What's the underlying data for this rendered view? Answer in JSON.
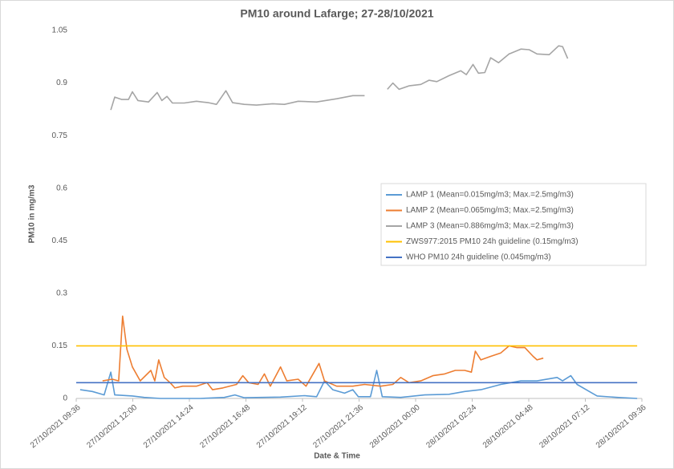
{
  "chart_data": {
    "type": "line",
    "title": "PM10 around Lafarge; 27-28/10/2021",
    "x_label": "Date & Time",
    "y_label": "PM10 in mg/m3",
    "xlim": [
      "27/10/2021 09:36",
      "28/10/2021 09:36"
    ],
    "xticks": [
      "27/10/2021 09:36",
      "27/10/2021 12:00",
      "27/10/2021 14:24",
      "27/10/2021 16:48",
      "27/10/2021 19:12",
      "27/10/2021 21:36",
      "28/10/2021 00:00",
      "28/10/2021 02:24",
      "28/10/2021 04:48",
      "28/10/2021 07:12",
      "28/10/2021 09:36"
    ],
    "ylim": [
      0,
      1.05
    ],
    "yticks": [
      0,
      0.15,
      0.3,
      0.45,
      0.6,
      0.75,
      0.9,
      1.05
    ],
    "grid": false,
    "legend": "right",
    "series": [
      {
        "name": "LAMP 1 (Mean=0.015mg/m3; Max.=2.5mg/m3)",
        "color": "#5b9bd5",
        "x": [
          "27/10/2021 09:46",
          "27/10/2021 10:17",
          "27/10/2021 10:47",
          "27/10/2021 11:04",
          "27/10/2021 11:14",
          "27/10/2021 11:59",
          "27/10/2021 12:29",
          "27/10/2021 13:10",
          "27/10/2021 14:52",
          "27/10/2021 15:53",
          "27/10/2021 16:20",
          "27/10/2021 16:44",
          "27/10/2021 18:16",
          "27/10/2021 19:17",
          "27/10/2021 19:48",
          "27/10/2021 20:08",
          "27/10/2021 20:29",
          "27/10/2021 20:59",
          "27/10/2021 21:20",
          "27/10/2021 21:34",
          "27/10/2021 22:05",
          "27/10/2021 22:21",
          "27/10/2021 22:35",
          "27/10/2021 23:22",
          "28/10/2021 00:23",
          "28/10/2021 01:25",
          "28/10/2021 02:05",
          "28/10/2021 02:46",
          "28/10/2021 03:37",
          "28/10/2021 04:28",
          "28/10/2021 05:09",
          "28/10/2021 06:00",
          "28/10/2021 06:14",
          "28/10/2021 06:35",
          "28/10/2021 06:51",
          "28/10/2021 07:22",
          "28/10/2021 07:42",
          "28/10/2021 08:33",
          "28/10/2021 09:24"
        ],
        "values": [
          0.025,
          0.02,
          0.01,
          0.075,
          0.01,
          0.007,
          0.003,
          0,
          0,
          0.003,
          0.01,
          0.002,
          0.004,
          0.008,
          0.005,
          0.05,
          0.025,
          0.015,
          0.025,
          0.005,
          0.005,
          0.08,
          0.005,
          0.003,
          0.01,
          0.012,
          0.02,
          0.025,
          0.04,
          0.05,
          0.05,
          0.06,
          0.05,
          0.065,
          0.04,
          0.02,
          0.007,
          0.003,
          0
        ]
      },
      {
        "name": "LAMP 2 (Mean=0.065mg/m3; Max.=2.5mg/m3)",
        "color": "#ed7d31",
        "x": [
          "27/10/2021 10:43",
          "27/10/2021 11:08",
          "27/10/2021 11:24",
          "27/10/2021 11:34",
          "27/10/2021 11:45",
          "27/10/2021 11:59",
          "27/10/2021 12:19",
          "27/10/2021 12:46",
          "27/10/2021 12:56",
          "27/10/2021 13:06",
          "27/10/2021 13:20",
          "27/10/2021 13:35",
          "27/10/2021 13:47",
          "27/10/2021 14:07",
          "27/10/2021 14:42",
          "27/10/2021 15:09",
          "27/10/2021 15:23",
          "27/10/2021 15:49",
          "27/10/2021 16:24",
          "27/10/2021 16:40",
          "27/10/2021 16:55",
          "27/10/2021 17:19",
          "27/10/2021 17:35",
          "27/10/2021 17:50",
          "27/10/2021 18:16",
          "27/10/2021 18:32",
          "27/10/2021 19:01",
          "27/10/2021 19:21",
          "27/10/2021 19:54",
          "27/10/2021 20:08",
          "27/10/2021 20:39",
          "27/10/2021 21:20",
          "27/10/2021 21:50",
          "27/10/2021 22:31",
          "27/10/2021 23:02",
          "27/10/2021 23:22",
          "27/10/2021 23:43",
          "28/10/2021 00:13",
          "28/10/2021 00:44",
          "28/10/2021 01:14",
          "28/10/2021 01:41",
          "28/10/2021 02:05",
          "28/10/2021 02:22",
          "28/10/2021 02:32",
          "28/10/2021 02:46",
          "28/10/2021 03:11",
          "28/10/2021 03:37",
          "28/10/2021 03:58",
          "28/10/2021 04:18",
          "28/10/2021 04:38",
          "28/10/2021 04:59",
          "28/10/2021 05:09",
          "28/10/2021 05:25"
        ],
        "values": [
          0.05,
          0.055,
          0.05,
          0.235,
          0.14,
          0.09,
          0.05,
          0.08,
          0.05,
          0.11,
          0.06,
          0.045,
          0.03,
          0.035,
          0.035,
          0.045,
          0.025,
          0.03,
          0.04,
          0.065,
          0.045,
          0.04,
          0.07,
          0.035,
          0.09,
          0.05,
          0.055,
          0.035,
          0.1,
          0.05,
          0.035,
          0.035,
          0.04,
          0.035,
          0.04,
          0.06,
          0.045,
          0.05,
          0.065,
          0.07,
          0.08,
          0.08,
          0.075,
          0.135,
          0.11,
          0.12,
          0.13,
          0.15,
          0.145,
          0.145,
          0.12,
          0.11,
          0.115
        ]
      },
      {
        "name": "LAMP 3 (Mean=0.886mg/m3; Max.=2.5mg/m3)",
        "color": "#a5a5a5",
        "x": [
          "27/10/2021 11:04",
          "27/10/2021 11:14",
          "27/10/2021 11:32",
          "27/10/2021 11:49",
          "27/10/2021 11:59",
          "27/10/2021 12:13",
          "27/10/2021 12:40",
          "27/10/2021 13:02",
          "27/10/2021 13:14",
          "27/10/2021 13:27",
          "27/10/2021 13:41",
          "27/10/2021 14:11",
          "27/10/2021 14:42",
          "27/10/2021 15:13",
          "27/10/2021 15:33",
          "27/10/2021 15:57",
          "27/10/2021 16:14",
          "27/10/2021 16:44",
          "27/10/2021 17:15",
          "27/10/2021 17:56",
          "27/10/2021 18:26",
          "27/10/2021 19:01",
          "27/10/2021 19:48",
          "27/10/2021 20:39",
          "27/10/2021 21:20",
          "27/10/2021 21:50",
          "27/10/2021 22:20",
          "27/10/2021 22:48",
          "27/10/2021 23:02",
          "27/10/2021 23:18",
          "27/10/2021 23:43",
          "28/10/2021 00:13",
          "28/10/2021 00:34",
          "28/10/2021 00:54",
          "28/10/2021 01:25",
          "28/10/2021 01:55",
          "28/10/2021 02:09",
          "28/10/2021 02:26",
          "28/10/2021 02:40",
          "28/10/2021 02:56",
          "28/10/2021 03:11",
          "28/10/2021 03:31",
          "28/10/2021 03:58",
          "28/10/2021 04:28",
          "28/10/2021 04:49",
          "28/10/2021 05:09",
          "28/10/2021 05:40",
          "28/10/2021 06:04",
          "28/10/2021 06:14",
          "28/10/2021 06:27"
        ],
        "values": [
          0.823,
          0.86,
          0.853,
          0.853,
          0.875,
          0.85,
          0.846,
          0.873,
          0.85,
          0.862,
          0.843,
          0.843,
          0.848,
          0.844,
          0.839,
          0.878,
          0.844,
          0.839,
          0.837,
          0.841,
          0.839,
          0.848,
          0.846,
          0.855,
          0.864,
          0.864,
          null,
          0.882,
          0.9,
          0.882,
          0.892,
          0.896,
          0.908,
          0.904,
          0.921,
          0.935,
          0.924,
          0.953,
          0.928,
          0.93,
          0.972,
          0.958,
          0.983,
          0.997,
          0.995,
          0.983,
          0.981,
          1.006,
          1.004,
          0.97
        ]
      },
      {
        "name": "ZWS977:2015 PM10 24h guideline (0.15mg/m3)",
        "color": "#ffc000",
        "x": [
          "27/10/2021 09:36",
          "28/10/2021 09:24"
        ],
        "values": [
          0.15,
          0.15
        ]
      },
      {
        "name": "WHO PM10 24h guideline (0.045mg/m3)",
        "color": "#4472c4",
        "x": [
          "27/10/2021 09:36",
          "28/10/2021 09:24"
        ],
        "values": [
          0.045,
          0.045
        ]
      }
    ]
  }
}
